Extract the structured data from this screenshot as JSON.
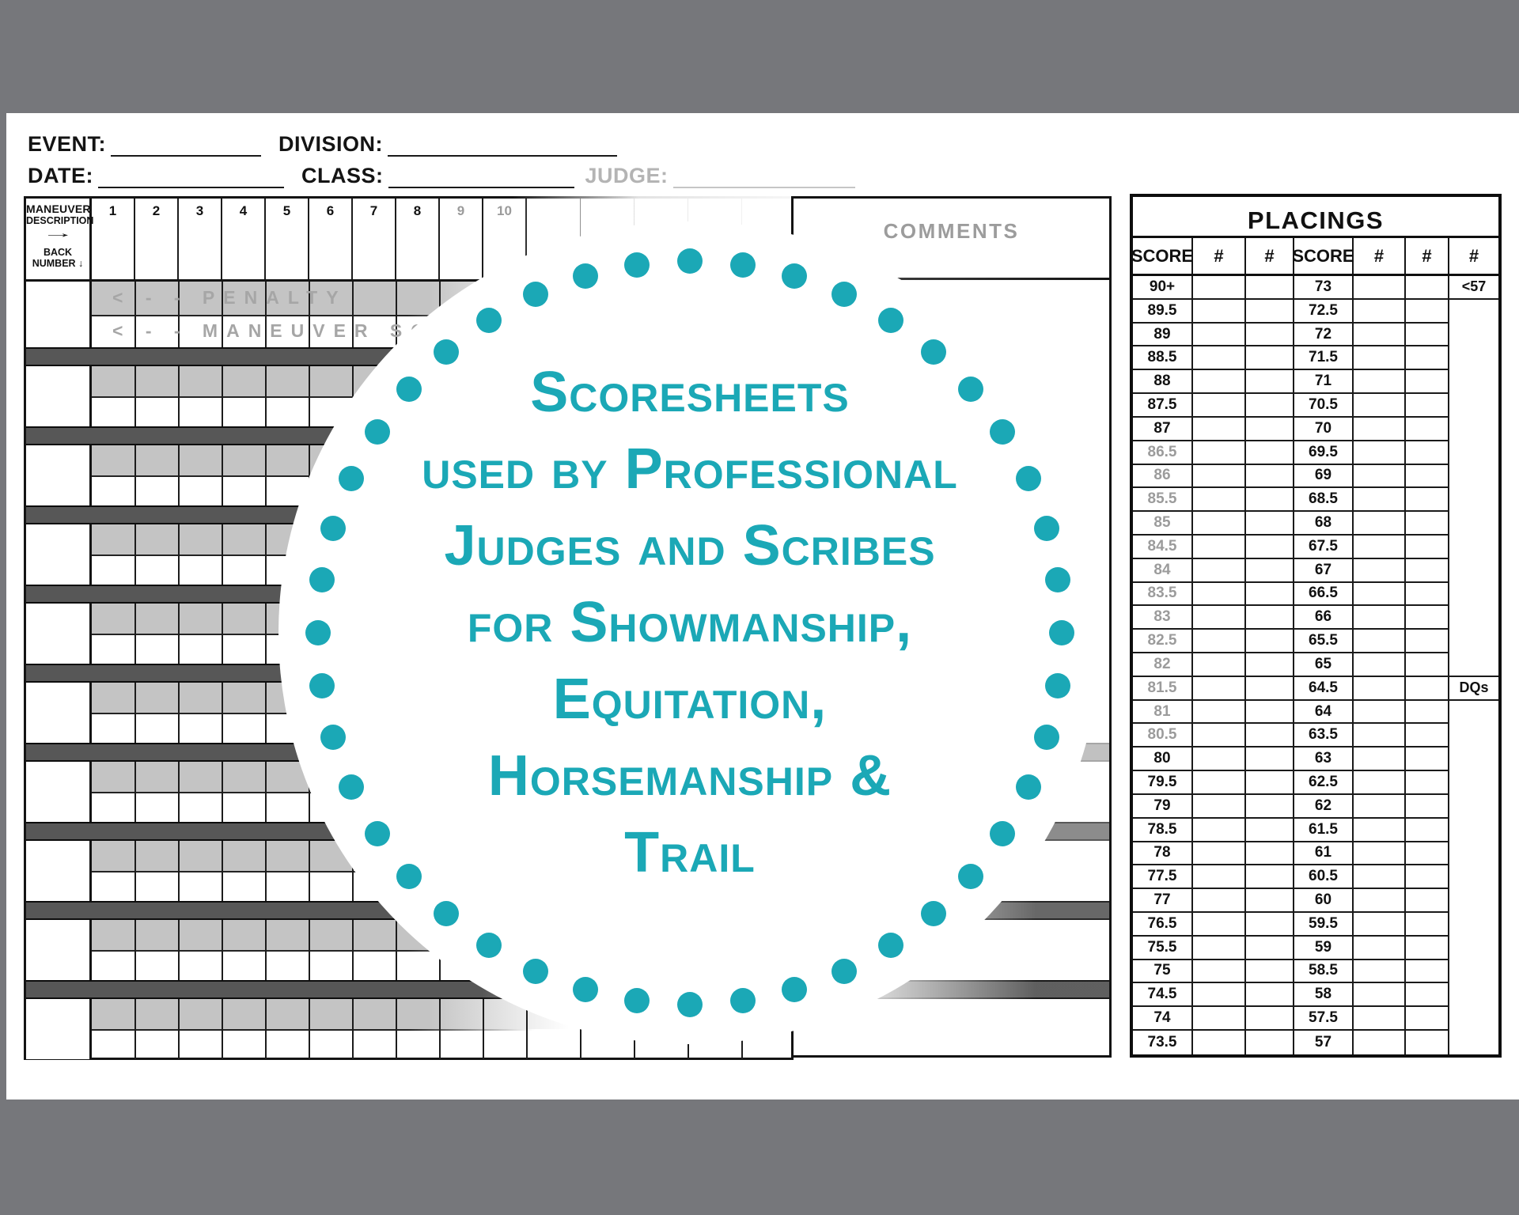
{
  "fields": {
    "event_label": "EVENT:",
    "division_label": "DIVISION:",
    "date_label": "DATE:",
    "class_label": "CLASS:",
    "judge_label": "JUDGE:"
  },
  "scoresheet": {
    "corner": {
      "line1": "MANEUVER",
      "line2": "DESCRIPTION",
      "arrow_right": "→",
      "line3": "BACK",
      "line4": "NUMBER",
      "arrow_down": "↓"
    },
    "column_numbers": [
      "1",
      "2",
      "3",
      "4",
      "5",
      "6",
      "7",
      "8",
      "9",
      "10"
    ],
    "muted_column_numbers": [
      "9",
      "10"
    ],
    "blank_columns": 5,
    "penalty_label": "< - - PENALTY",
    "maneuver_label": "< - - MANEUVER SC",
    "maneuver_blocks": 9,
    "comments_title": "COMMENTS"
  },
  "overlay": {
    "lines": [
      "Scoresheets",
      "used by Professional",
      "Judges and Scribes",
      "for Showmanship,",
      "Equitation,",
      "Horsemanship &",
      "Trail"
    ],
    "accent_color": "#1BA8B6",
    "dot_count": 44
  },
  "placings": {
    "title": "PLACINGS",
    "headers": [
      "SCORE",
      "#",
      "#",
      "SCORE",
      "#",
      "#",
      "#"
    ],
    "left_scores": [
      "90+",
      "89.5",
      "89",
      "88.5",
      "88",
      "87.5",
      "87",
      "86.5",
      "86",
      "85.5",
      "85",
      "84.5",
      "84",
      "83.5",
      "83",
      "82.5",
      "82",
      "81.5",
      "81",
      "80.5",
      "80",
      "79.5",
      "79",
      "78.5",
      "78",
      "77.5",
      "77",
      "76.5",
      "75.5",
      "75",
      "74.5",
      "74",
      "73.5"
    ],
    "right_scores": [
      "73",
      "72.5",
      "72",
      "71.5",
      "71",
      "70.5",
      "70",
      "69.5",
      "69",
      "68.5",
      "68",
      "67.5",
      "67",
      "66.5",
      "66",
      "65.5",
      "65",
      "64.5",
      "64",
      "63.5",
      "63",
      "62.5",
      "62",
      "61.5",
      "61",
      "60.5",
      "60",
      "59.5",
      "59",
      "58.5",
      "58",
      "57.5",
      "57"
    ],
    "faded_left_scores": [
      "86.5",
      "86",
      "85.5",
      "85",
      "84.5",
      "84",
      "83.5",
      "83",
      "82.5",
      "82",
      "81.5",
      "81",
      "80.5"
    ],
    "under_57_label": "<57",
    "dq_label": "DQs",
    "dq_row_index": 17
  }
}
